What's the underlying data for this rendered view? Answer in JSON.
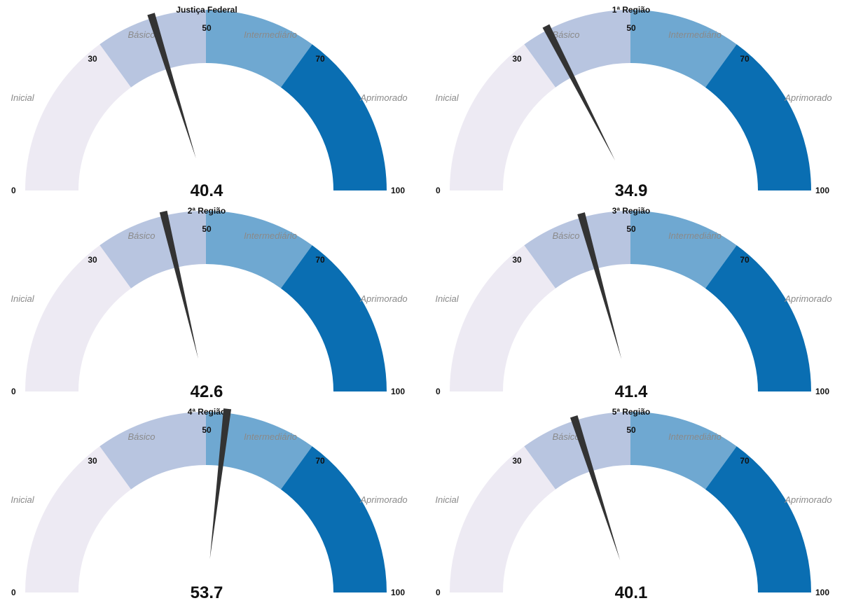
{
  "chart_data": [
    {
      "type": "gauge",
      "title": "Justiça Federal",
      "value": 40.4,
      "value_label": "40.4",
      "range": [
        0,
        100
      ]
    },
    {
      "type": "gauge",
      "title": "1ª Região",
      "value": 34.9,
      "value_label": "34.9",
      "range": [
        0,
        100
      ]
    },
    {
      "type": "gauge",
      "title": "2ª Região",
      "value": 42.6,
      "value_label": "42.6",
      "range": [
        0,
        100
      ]
    },
    {
      "type": "gauge",
      "title": "3ª Região",
      "value": 41.4,
      "value_label": "41.4",
      "range": [
        0,
        100
      ]
    },
    {
      "type": "gauge",
      "title": "4ª Região",
      "value": 53.7,
      "value_label": "53.7",
      "range": [
        0,
        100
      ]
    },
    {
      "type": "gauge",
      "title": "5ª Região",
      "value": 40.1,
      "value_label": "40.1",
      "range": [
        0,
        100
      ]
    }
  ],
  "bands": [
    {
      "label": "Inicial",
      "from": 0,
      "to": 30,
      "color": "#edeaf3"
    },
    {
      "label": "Básico",
      "from": 30,
      "to": 50,
      "color": "#b8c5e0"
    },
    {
      "label": "Intermediário",
      "from": 50,
      "to": 70,
      "color": "#6fa8d1"
    },
    {
      "label": "Aprimorado",
      "from": 70,
      "to": 100,
      "color": "#0a6eb2"
    }
  ],
  "ticks": [
    "0",
    "30",
    "50",
    "70",
    "100"
  ],
  "needle_color": "#333333"
}
